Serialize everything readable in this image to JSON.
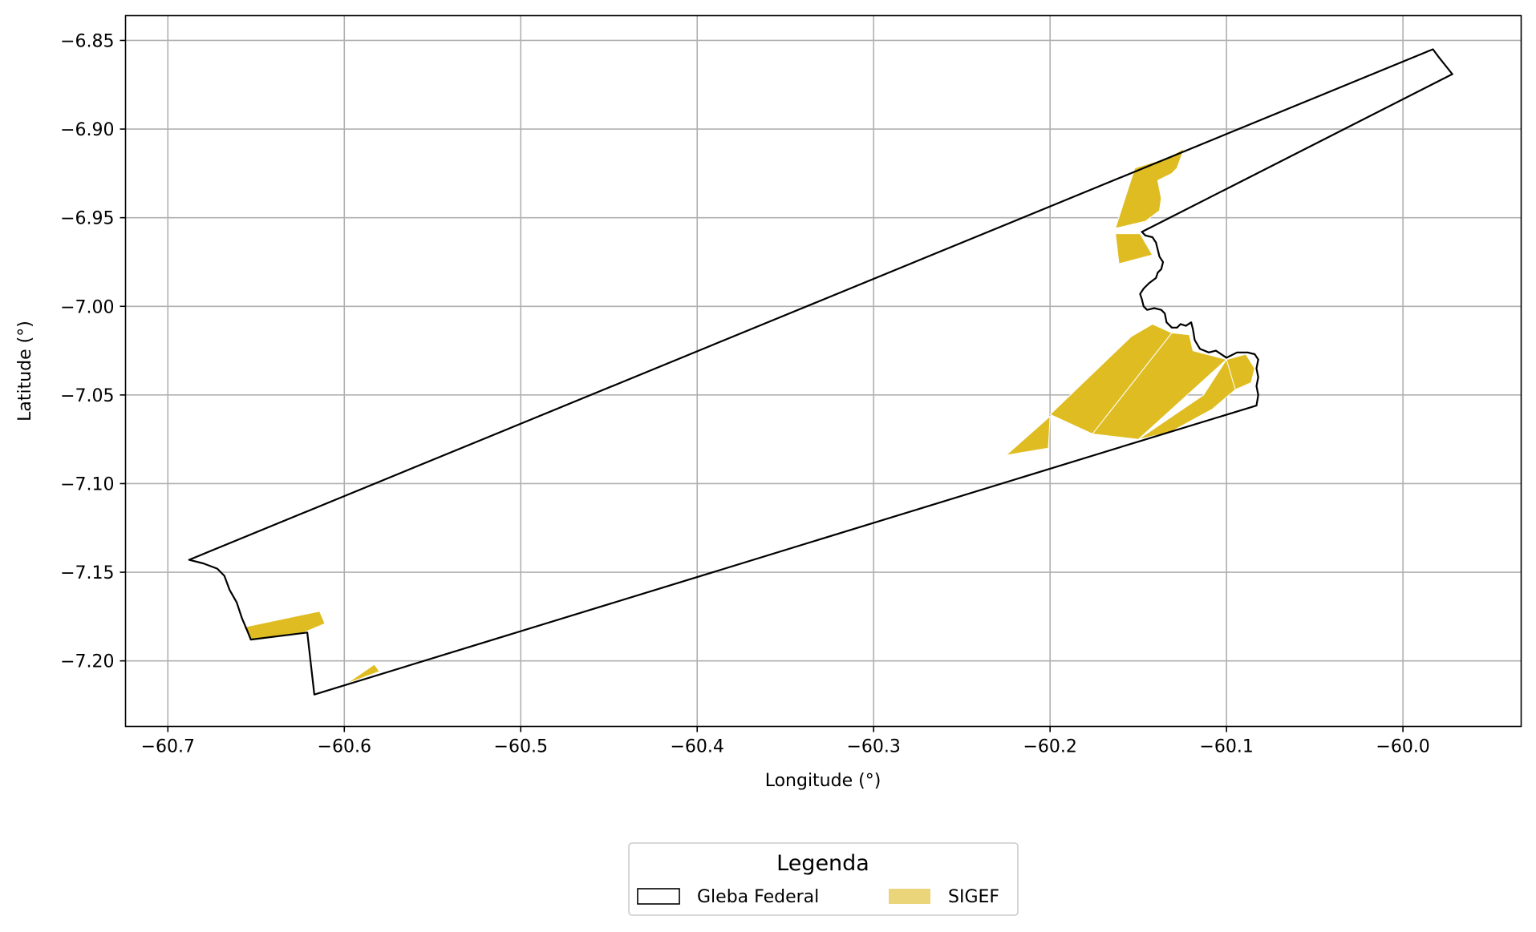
{
  "chart_data": {
    "type": "map",
    "xlabel": "Longitude (°)",
    "ylabel": "Latitude (°)",
    "xlim": [
      -60.724,
      -59.933
    ],
    "ylim": [
      -7.237,
      -6.836
    ],
    "grid": true,
    "x_ticks": [
      -60.7,
      -60.6,
      -60.5,
      -60.4,
      -60.3,
      -60.2,
      -60.1,
      -60.0
    ],
    "x_tick_labels": [
      "−60.7",
      "−60.6",
      "−60.5",
      "−60.4",
      "−60.3",
      "−60.2",
      "−60.1",
      "−60.0"
    ],
    "y_ticks": [
      -6.85,
      -6.9,
      -6.95,
      -7.0,
      -7.05,
      -7.1,
      -7.15,
      -7.2
    ],
    "y_tick_labels": [
      "−6.85",
      "−6.90",
      "−6.95",
      "−7.00",
      "−7.05",
      "−7.10",
      "−7.15",
      "−7.20"
    ],
    "legend": {
      "title": "Legenda",
      "placement": "below plot, centered",
      "entries": [
        {
          "label": "Gleba Federal",
          "style": "outline",
          "color": "#000000"
        },
        {
          "label": "SIGEF",
          "style": "fill",
          "color": "#ebd57a"
        }
      ]
    },
    "layers": [
      {
        "name": "Gleba Federal",
        "style": "outline",
        "stroke": "#000000",
        "polygons": [
          [
            [
              -60.688,
              -7.143
            ],
            [
              -60.68,
              -7.145
            ],
            [
              -60.672,
              -7.148
            ],
            [
              -60.668,
              -7.152
            ],
            [
              -60.665,
              -7.16
            ],
            [
              -60.661,
              -7.167
            ],
            [
              -60.658,
              -7.176
            ],
            [
              -60.655,
              -7.183
            ],
            [
              -60.653,
              -7.188
            ],
            [
              -60.621,
              -7.184
            ],
            [
              -60.617,
              -7.219
            ],
            [
              -60.149,
              -7.076
            ],
            [
              -60.083,
              -7.056
            ],
            [
              -60.082,
              -7.05
            ],
            [
              -60.083,
              -7.045
            ],
            [
              -60.082,
              -7.04
            ],
            [
              -60.083,
              -7.035
            ],
            [
              -60.082,
              -7.03
            ],
            [
              -60.084,
              -7.027
            ],
            [
              -60.088,
              -7.026
            ],
            [
              -60.094,
              -7.026
            ],
            [
              -60.1,
              -7.029
            ],
            [
              -60.106,
              -7.025
            ],
            [
              -60.11,
              -7.026
            ],
            [
              -60.115,
              -7.024
            ],
            [
              -60.118,
              -7.019
            ],
            [
              -60.119,
              -7.013
            ],
            [
              -60.12,
              -7.009
            ],
            [
              -60.123,
              -7.011
            ],
            [
              -60.126,
              -7.01
            ],
            [
              -60.128,
              -7.012
            ],
            [
              -60.131,
              -7.012
            ],
            [
              -60.134,
              -7.009
            ],
            [
              -60.135,
              -7.004
            ],
            [
              -60.137,
              -7.002
            ],
            [
              -60.141,
              -7.001
            ],
            [
              -60.145,
              -7.002
            ],
            [
              -60.147,
              -7.0
            ],
            [
              -60.148,
              -6.996
            ],
            [
              -60.149,
              -6.993
            ],
            [
              -60.147,
              -6.99
            ],
            [
              -60.144,
              -6.987
            ],
            [
              -60.14,
              -6.984
            ],
            [
              -60.139,
              -6.981
            ],
            [
              -60.137,
              -6.979
            ],
            [
              -60.136,
              -6.975
            ],
            [
              -60.138,
              -6.972
            ],
            [
              -60.139,
              -6.968
            ],
            [
              -60.14,
              -6.964
            ],
            [
              -60.142,
              -6.961
            ],
            [
              -60.146,
              -6.96
            ],
            [
              -60.148,
              -6.958
            ],
            [
              -59.972,
              -6.869
            ],
            [
              -59.98,
              -6.859
            ],
            [
              -59.983,
              -6.855
            ],
            [
              -60.688,
              -7.143
            ]
          ]
        ]
      },
      {
        "name": "SIGEF",
        "style": "fill",
        "fill": "#dfbd22",
        "polygons": [
          [
            [
              -60.657,
              -7.181
            ],
            [
              -60.614,
              -7.172
            ],
            [
              -60.611,
              -7.179
            ],
            [
              -60.623,
              -7.184
            ],
            [
              -60.653,
              -7.188
            ]
          ],
          [
            [
              -60.599,
              -7.213
            ],
            [
              -60.583,
              -7.202
            ],
            [
              -60.58,
              -7.206
            ]
          ],
          [
            [
              -60.124,
              -6.911
            ],
            [
              -60.133,
              -6.916
            ],
            [
              -60.152,
              -6.922
            ],
            [
              -60.163,
              -6.956
            ],
            [
              -60.146,
              -6.952
            ],
            [
              -60.138,
              -6.946
            ],
            [
              -60.137,
              -6.939
            ],
            [
              -60.139,
              -6.929
            ],
            [
              -60.131,
              -6.925
            ],
            [
              -60.128,
              -6.922
            ]
          ],
          [
            [
              -60.163,
              -6.959
            ],
            [
              -60.149,
              -6.959
            ],
            [
              -60.142,
              -6.971
            ],
            [
              -60.161,
              -6.976
            ]
          ],
          [
            [
              -60.225,
              -7.084
            ],
            [
              -60.2,
              -7.062
            ],
            [
              -60.201,
              -7.08
            ]
          ],
          [
            [
              -60.2,
              -7.061
            ],
            [
              -60.154,
              -7.017
            ],
            [
              -60.142,
              -7.01
            ],
            [
              -60.131,
              -7.015
            ],
            [
              -60.176,
              -7.072
            ]
          ],
          [
            [
              -60.176,
              -7.072
            ],
            [
              -60.131,
              -7.015
            ],
            [
              -60.121,
              -7.016
            ],
            [
              -60.119,
              -7.025
            ],
            [
              -60.1,
              -7.03
            ],
            [
              -60.15,
              -7.075
            ]
          ],
          [
            [
              -60.15,
              -7.075
            ],
            [
              -60.113,
              -7.05
            ],
            [
              -60.1,
              -7.03
            ],
            [
              -60.087,
              -7.043
            ],
            [
              -60.095,
              -7.047
            ],
            [
              -60.108,
              -7.058
            ],
            [
              -60.132,
              -7.071
            ]
          ],
          [
            [
              -60.095,
              -7.047
            ],
            [
              -60.086,
              -7.043
            ],
            [
              -60.084,
              -7.035
            ],
            [
              -60.089,
              -7.027
            ],
            [
              -60.1,
              -7.03
            ]
          ]
        ]
      }
    ]
  }
}
